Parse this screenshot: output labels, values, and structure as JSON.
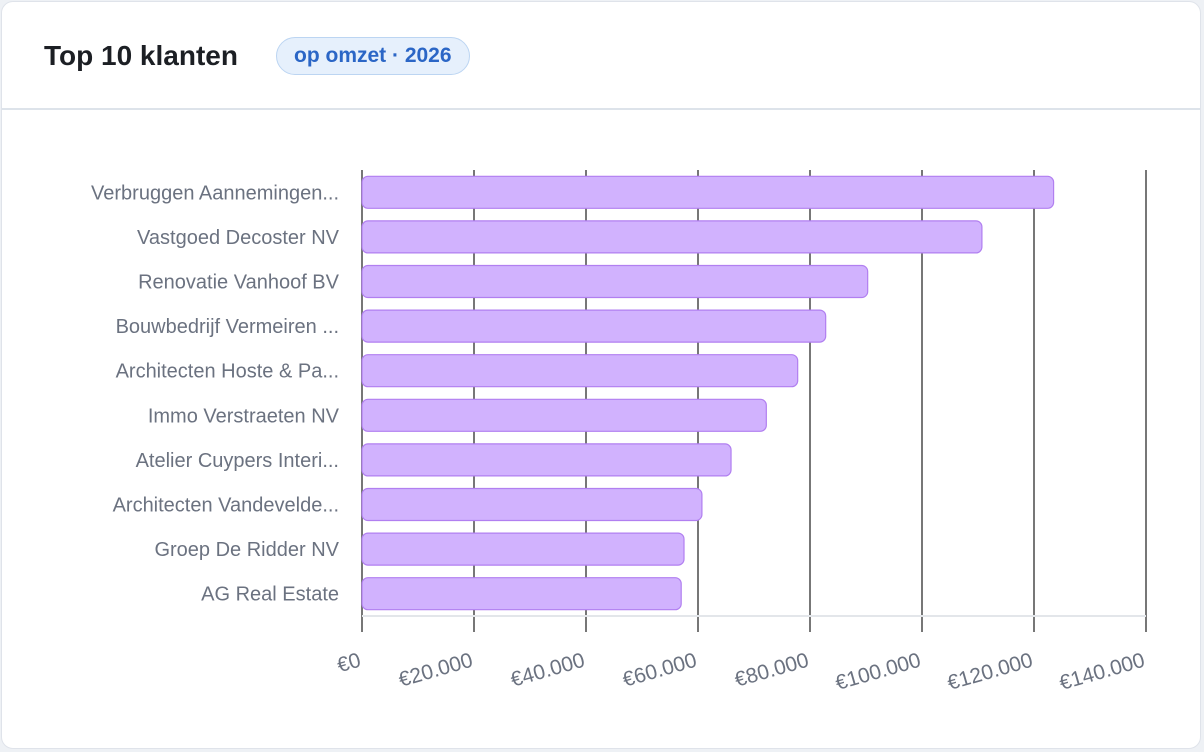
{
  "header": {
    "title": "Top 10 klanten",
    "badge": "op omzet · 2026"
  },
  "colors": {
    "bar_fill": "#d1b2fe",
    "bar_stroke": "#b17ff0",
    "grid": "#777777",
    "label": "#6b7280",
    "badge_text": "#2b66c6"
  },
  "chart_data": {
    "type": "bar",
    "orientation": "horizontal",
    "categories": [
      "Verbruggen Aannemingen...",
      "Vastgoed Decoster NV",
      "Renovatie Vanhoof BV",
      "Bouwbedrijf Vermeiren ...",
      "Architecten Hoste & Pa...",
      "Immo Verstraeten NV",
      "Atelier Cuypers Interi...",
      "Architecten Vandevelde...",
      "Groep De Ridder NV",
      "AG Real Estate"
    ],
    "values": [
      123500,
      110700,
      90300,
      82800,
      77800,
      72200,
      65900,
      60700,
      57500,
      57000
    ],
    "xlim": [
      0,
      140000
    ],
    "x_ticks": [
      0,
      20000,
      40000,
      60000,
      80000,
      100000,
      120000,
      140000
    ],
    "x_tick_labels": [
      "€0",
      "€20.000",
      "€40.000",
      "€60.000",
      "€80.000",
      "€100.000",
      "€120.000",
      "€140.000"
    ],
    "grid": "vertical",
    "legend": "none"
  }
}
